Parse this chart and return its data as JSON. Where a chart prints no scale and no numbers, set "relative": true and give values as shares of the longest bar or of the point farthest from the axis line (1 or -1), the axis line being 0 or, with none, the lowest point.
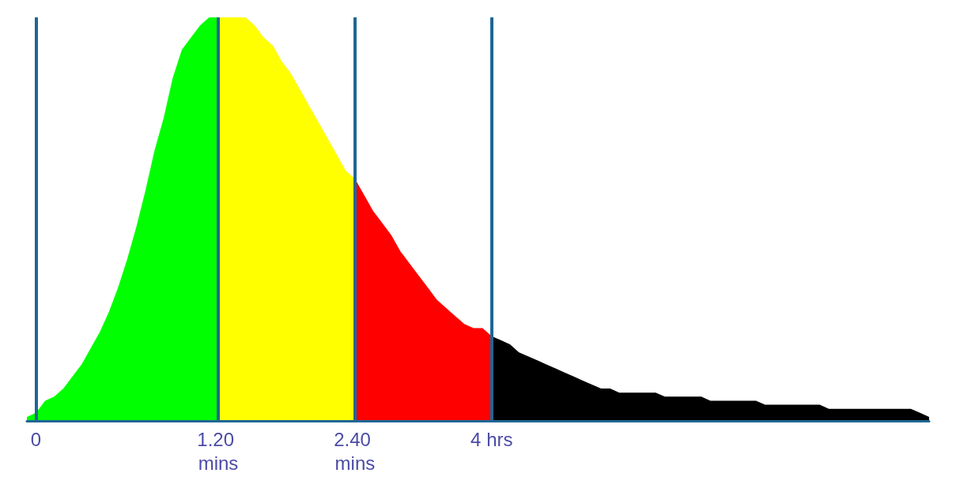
{
  "chart_data": {
    "type": "area",
    "relative": true,
    "grid": "x",
    "categories": [
      null,
      "0",
      null,
      null,
      null,
      null,
      null,
      null,
      null,
      null,
      null,
      null,
      null,
      null,
      null,
      null,
      null,
      null,
      null,
      null,
      null,
      "1.20 mins",
      null,
      null,
      null,
      null,
      null,
      null,
      null,
      null,
      null,
      null,
      null,
      null,
      null,
      null,
      "2.40 mins",
      null,
      null,
      null,
      null,
      null,
      null,
      null,
      null,
      null,
      null,
      null,
      null,
      null,
      null,
      "4 hrs",
      null,
      null,
      null,
      null,
      null,
      null,
      null,
      null,
      null,
      null,
      null,
      null,
      null,
      null,
      null,
      null,
      null,
      null,
      null,
      null,
      null,
      null,
      null,
      null,
      null,
      null,
      null,
      null,
      null,
      null,
      null,
      null,
      null,
      null,
      null,
      null,
      null,
      null,
      null,
      null,
      null,
      null,
      null,
      null,
      null,
      null,
      null,
      null
    ],
    "series": [
      {
        "color": "#00ff00",
        "values": [
          0.01,
          0.02,
          0.05,
          0.06,
          0.08,
          0.11,
          0.14,
          0.18,
          0.22,
          0.27,
          0.33,
          0.4,
          0.48,
          0.57,
          0.67,
          0.75,
          0.85,
          0.92,
          0.95,
          0.98,
          1,
          1,
          null,
          null,
          null,
          null,
          null,
          null,
          null,
          null,
          null,
          null,
          null,
          null,
          null,
          null,
          null,
          null,
          null,
          null,
          null,
          null,
          null,
          null,
          null,
          null,
          null,
          null,
          null,
          null,
          null,
          null,
          null,
          null,
          null,
          null,
          null,
          null,
          null,
          null,
          null,
          null,
          null,
          null,
          null,
          null,
          null,
          null,
          null,
          null,
          null,
          null,
          null,
          null,
          null,
          null,
          null,
          null,
          null,
          null,
          null,
          null,
          null,
          null,
          null,
          null,
          null,
          null,
          null,
          null,
          null,
          null,
          null,
          null,
          null,
          null,
          null,
          null,
          null,
          null
        ]
      },
      {
        "color": "#ffff00",
        "values": [
          null,
          null,
          null,
          null,
          null,
          null,
          null,
          null,
          null,
          null,
          null,
          null,
          null,
          null,
          null,
          null,
          null,
          null,
          null,
          null,
          null,
          1,
          1,
          1,
          1,
          0.98,
          0.95,
          0.93,
          0.89,
          0.86,
          0.82,
          0.78,
          0.74,
          0.7,
          0.66,
          0.62,
          0.6,
          null,
          null,
          null,
          null,
          null,
          null,
          null,
          null,
          null,
          null,
          null,
          null,
          null,
          null,
          null,
          null,
          null,
          null,
          null,
          null,
          null,
          null,
          null,
          null,
          null,
          null,
          null,
          null,
          null,
          null,
          null,
          null,
          null,
          null,
          null,
          null,
          null,
          null,
          null,
          null,
          null,
          null,
          null,
          null,
          null,
          null,
          null,
          null,
          null,
          null,
          null,
          null,
          null,
          null,
          null,
          null,
          null,
          null,
          null,
          null,
          null,
          null,
          null
        ]
      },
      {
        "color": "#ff0000",
        "values": [
          null,
          null,
          null,
          null,
          null,
          null,
          null,
          null,
          null,
          null,
          null,
          null,
          null,
          null,
          null,
          null,
          null,
          null,
          null,
          null,
          null,
          null,
          null,
          null,
          null,
          null,
          null,
          null,
          null,
          null,
          null,
          null,
          null,
          null,
          null,
          null,
          0.6,
          0.56,
          0.52,
          0.49,
          0.46,
          0.42,
          0.39,
          0.36,
          0.33,
          0.3,
          0.28,
          0.26,
          0.24,
          0.23,
          0.23,
          0.21,
          null,
          null,
          null,
          null,
          null,
          null,
          null,
          null,
          null,
          null,
          null,
          null,
          null,
          null,
          null,
          null,
          null,
          null,
          null,
          null,
          null,
          null,
          null,
          null,
          null,
          null,
          null,
          null,
          null,
          null,
          null,
          null,
          null,
          null,
          null,
          null,
          null,
          null,
          null,
          null,
          null,
          null,
          null,
          null,
          null,
          null,
          null,
          null
        ]
      },
      {
        "color": "#000000",
        "values": [
          null,
          null,
          null,
          null,
          null,
          null,
          null,
          null,
          null,
          null,
          null,
          null,
          null,
          null,
          null,
          null,
          null,
          null,
          null,
          null,
          null,
          null,
          null,
          null,
          null,
          null,
          null,
          null,
          null,
          null,
          null,
          null,
          null,
          null,
          null,
          null,
          null,
          null,
          null,
          null,
          null,
          null,
          null,
          null,
          null,
          null,
          null,
          null,
          null,
          null,
          null,
          0.21,
          0.2,
          0.19,
          0.17,
          0.16,
          0.15,
          0.14,
          0.13,
          0.12,
          0.11,
          0.1,
          0.09,
          0.08,
          0.08,
          0.07,
          0.07,
          0.07,
          0.07,
          0.07,
          0.06,
          0.06,
          0.06,
          0.06,
          0.06,
          0.05,
          0.05,
          0.05,
          0.05,
          0.05,
          0.05,
          0.04,
          0.04,
          0.04,
          0.04,
          0.04,
          0.04,
          0.04,
          0.03,
          0.03,
          0.03,
          0.03,
          0.03,
          0.03,
          0.03,
          0.03,
          0.03,
          0.03,
          0.02,
          0.01
        ]
      }
    ]
  }
}
